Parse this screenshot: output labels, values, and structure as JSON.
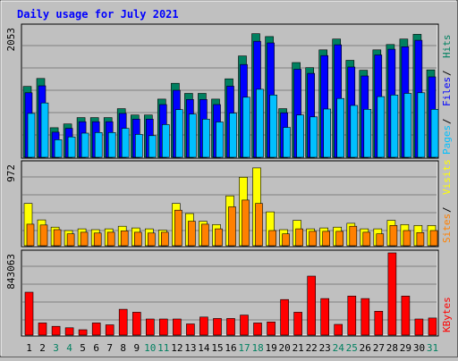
{
  "chart_data": {
    "type": "bar",
    "title": "Daily usage for July 2021",
    "categories": [
      "1",
      "2",
      "3",
      "4",
      "5",
      "6",
      "7",
      "8",
      "9",
      "10",
      "11",
      "12",
      "13",
      "14",
      "15",
      "16",
      "17",
      "18",
      "19",
      "20",
      "21",
      "22",
      "23",
      "24",
      "25",
      "26",
      "27",
      "28",
      "29",
      "30",
      "31"
    ],
    "weekend_days": [
      "3",
      "4",
      "10",
      "11",
      "17",
      "18",
      "24",
      "25",
      "31"
    ],
    "panels": [
      {
        "id": "top",
        "ymax_label": "2053",
        "ymax": 2053,
        "right_labels": [
          "Pages",
          "Files",
          "Hits"
        ],
        "series": [
          {
            "name": "Hits",
            "color": "#008060",
            "values": [
              1115,
              1240,
              465,
              525,
              625,
              625,
              625,
              765,
              665,
              665,
              915,
              1165,
              1005,
              1005,
              915,
              1235,
              1595,
              1945,
              1900,
              765,
              1490,
              1410,
              1690,
              1860,
              1525,
              1370,
              1690,
              1775,
              1860,
              1935,
              1375
            ]
          },
          {
            "name": "Files",
            "color": "#0000ff",
            "values": [
              1015,
              1125,
              395,
              455,
              560,
              560,
              560,
              690,
              600,
              600,
              830,
              1055,
              910,
              910,
              830,
              1120,
              1460,
              1825,
              1800,
              700,
              1385,
              1320,
              1600,
              1770,
              1420,
              1280,
              1610,
              1700,
              1740,
              1840,
              1265
            ]
          },
          {
            "name": "Pages",
            "color": "#00c0ff",
            "values": [
              690,
              855,
              275,
              320,
              380,
              390,
              390,
              455,
              360,
              340,
              515,
              750,
              680,
              600,
              555,
              695,
              945,
              1070,
              980,
              470,
              665,
              635,
              760,
              925,
              815,
              755,
              955,
              980,
              1005,
              1015,
              755
            ]
          }
        ]
      },
      {
        "id": "mid",
        "ymax_label": "972",
        "ymax": 972,
        "right_labels": [
          "Sites",
          "Visits"
        ],
        "series": [
          {
            "name": "Visits",
            "color": "#ffff00",
            "values": [
              500,
              305,
              220,
              180,
              200,
              190,
              200,
              230,
              210,
              200,
              185,
              500,
              380,
              290,
              250,
              590,
              810,
              920,
              400,
              190,
              300,
              200,
              210,
              220,
              265,
              200,
              200,
              300,
              250,
              240,
              240
            ]
          },
          {
            "name": "Sites",
            "color": "#ff8000",
            "values": [
              255,
              245,
              190,
              140,
              160,
              150,
              160,
              175,
              160,
              150,
              160,
              420,
              290,
              255,
              200,
              460,
              540,
              500,
              180,
              140,
              200,
              170,
              170,
              170,
              230,
              160,
              140,
              240,
              180,
              155,
              180
            ]
          }
        ]
      },
      {
        "id": "bot",
        "ymax_label": "843063",
        "ymax": 843063,
        "right_labels": [
          "KBytes"
        ],
        "series": [
          {
            "name": "KBytes",
            "color": "#ff0000",
            "values": [
              440000,
              125000,
              90000,
              75000,
              55000,
              125000,
              105000,
              265000,
              235000,
              165000,
              165000,
              165000,
              115000,
              185000,
              170000,
              170000,
              205000,
              125000,
              135000,
              365000,
              235000,
              605000,
              375000,
              110000,
              400000,
              375000,
              245000,
              843063,
              400000,
              165000,
              175000
            ]
          }
        ]
      }
    ]
  },
  "colors": {
    "background": "#c0c0c0",
    "title": "#0000ff",
    "weekday_label": "#000000",
    "weekend_label": "#008060",
    "grid": "#808080"
  }
}
